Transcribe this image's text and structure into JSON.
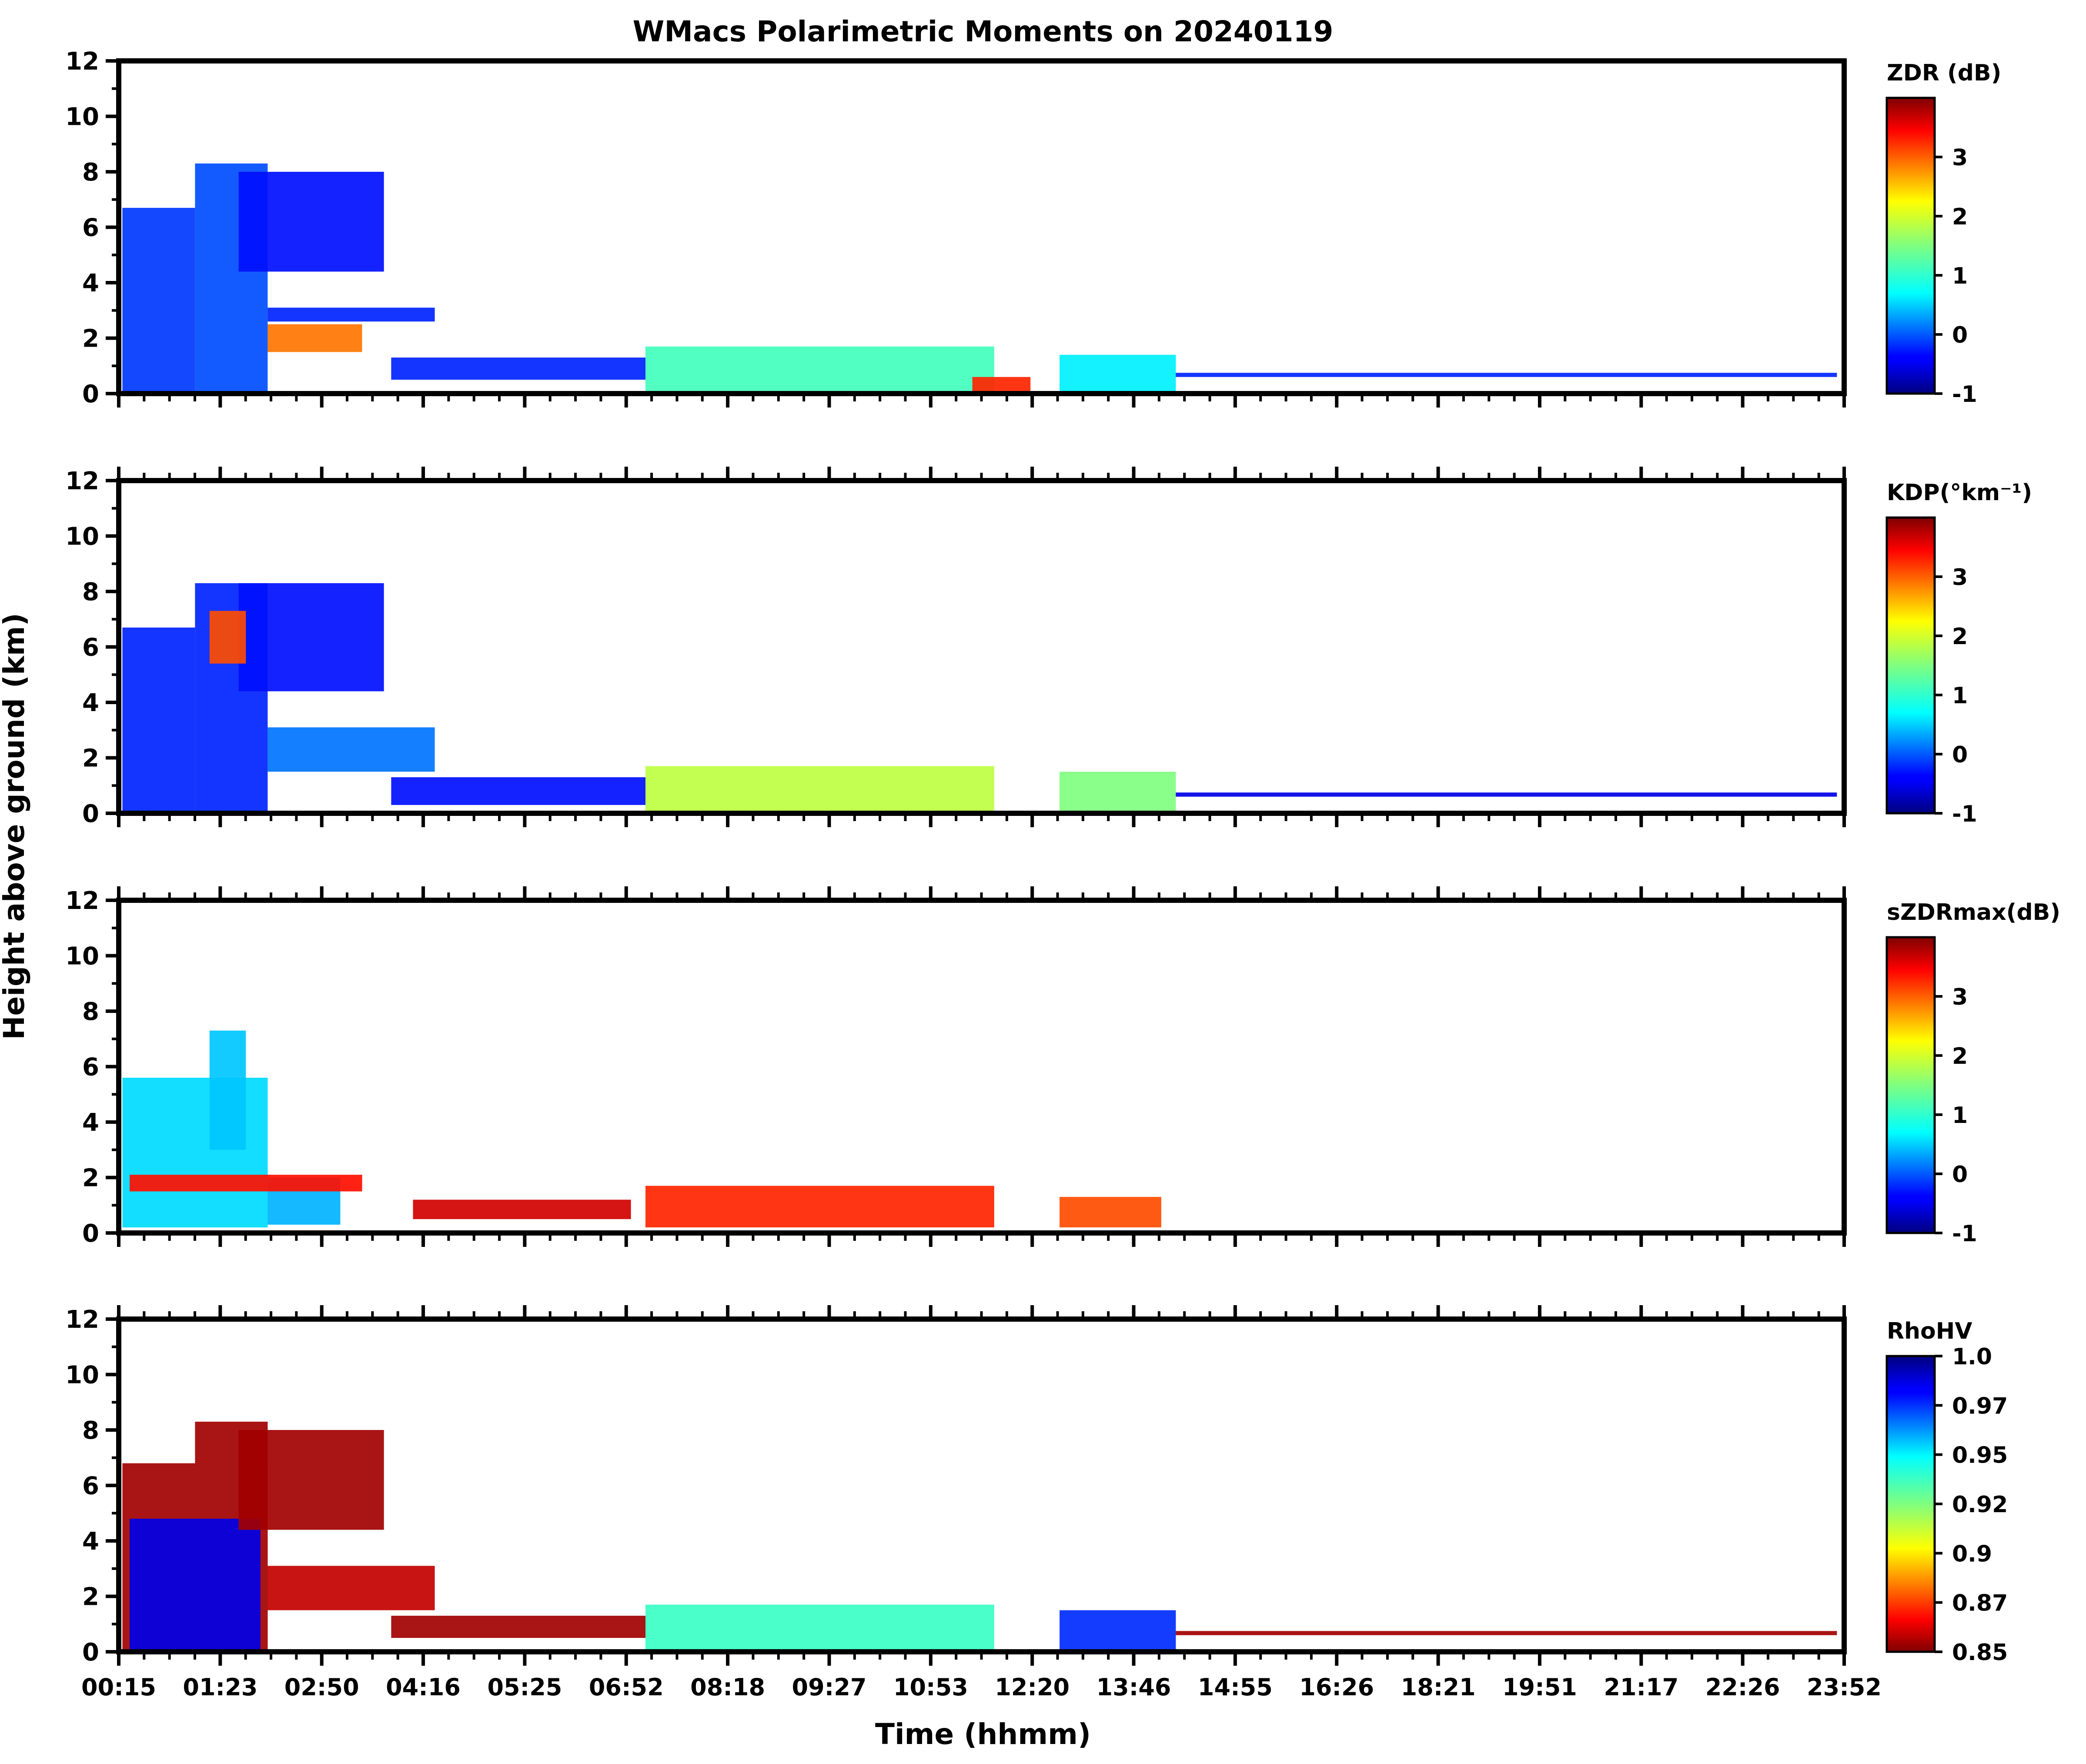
{
  "chart_data": {
    "type": "heatmap",
    "title": "WMacs Polarimetric Moments on 20240119",
    "xlabel": "Time (hhmm)",
    "ylabel": "Height above ground (km)",
    "x_tick_labels": [
      "00:15",
      "01:23",
      "02:50",
      "04:16",
      "05:25",
      "06:52",
      "08:18",
      "09:27",
      "10:53",
      "12:20",
      "13:46",
      "14:55",
      "16:26",
      "18:21",
      "19:51",
      "21:17",
      "22:26",
      "23:52"
    ],
    "x_range_hours": [
      0.25,
      24.0
    ],
    "ylim": [
      0,
      12
    ],
    "y_ticks": [
      0,
      2,
      4,
      6,
      8,
      10,
      12
    ],
    "panels": [
      {
        "name": "zdr",
        "colorbar_label": "ZDR (dB)",
        "colorbar_ticks": [
          "-1",
          "0",
          "1",
          "2",
          "3"
        ],
        "colorbar_tick_values": [
          -1,
          0,
          1,
          2,
          3
        ],
        "vmin": -1,
        "vmax": 4,
        "colormap": "jet",
        "echo_regions": [
          {
            "t0": 0.3,
            "t1": 1.3,
            "h0": 0.0,
            "h1": 6.7,
            "value": -0.1
          },
          {
            "t0": 1.3,
            "t1": 2.3,
            "h0": 0.0,
            "h1": 8.3,
            "value": 0.0
          },
          {
            "t0": 1.9,
            "t1": 3.9,
            "h0": 4.4,
            "h1": 8.0,
            "value": -0.3
          },
          {
            "t0": 2.3,
            "t1": 4.6,
            "h0": 2.6,
            "h1": 3.1,
            "value": -0.2
          },
          {
            "t0": 2.3,
            "t1": 3.6,
            "h0": 1.5,
            "h1": 2.5,
            "value": 2.8
          },
          {
            "t0": 4.0,
            "t1": 7.5,
            "h0": 0.5,
            "h1": 1.3,
            "value": -0.2
          },
          {
            "t0": 7.5,
            "t1": 12.3,
            "h0": 0.0,
            "h1": 1.7,
            "value": 1.2
          },
          {
            "t0": 12.0,
            "t1": 12.8,
            "h0": 0.0,
            "h1": 0.6,
            "value": 3.2
          },
          {
            "t0": 13.2,
            "t1": 14.8,
            "h0": 0.0,
            "h1": 1.4,
            "value": 0.8
          },
          {
            "t0": 14.8,
            "t1": 23.9,
            "h0": 0.6,
            "h1": 0.75,
            "value": -0.2
          }
        ]
      },
      {
        "name": "kdp",
        "colorbar_label": "KDP(°km⁻¹)",
        "colorbar_ticks": [
          "-1",
          "0",
          "1",
          "2",
          "3"
        ],
        "colorbar_tick_values": [
          -1,
          0,
          1,
          2,
          3
        ],
        "vmin": -1,
        "vmax": 4,
        "colormap": "jet",
        "echo_regions": [
          {
            "t0": 0.3,
            "t1": 1.3,
            "h0": 0.0,
            "h1": 6.7,
            "value": -0.2
          },
          {
            "t0": 1.3,
            "t1": 2.3,
            "h0": 0.0,
            "h1": 8.3,
            "value": -0.2
          },
          {
            "t0": 1.9,
            "t1": 3.9,
            "h0": 4.4,
            "h1": 8.3,
            "value": -0.3
          },
          {
            "t0": 2.3,
            "t1": 4.6,
            "h0": 1.5,
            "h1": 3.1,
            "value": 0.2
          },
          {
            "t0": 1.5,
            "t1": 2.0,
            "h0": 5.4,
            "h1": 7.3,
            "value": 3.0
          },
          {
            "t0": 4.0,
            "t1": 7.5,
            "h0": 0.3,
            "h1": 1.3,
            "value": -0.3
          },
          {
            "t0": 7.5,
            "t1": 12.3,
            "h0": 0.0,
            "h1": 1.7,
            "value": 1.8
          },
          {
            "t0": 13.2,
            "t1": 14.8,
            "h0": 0.0,
            "h1": 1.5,
            "value": 1.5
          },
          {
            "t0": 14.8,
            "t1": 23.9,
            "h0": 0.6,
            "h1": 0.75,
            "value": -0.5
          }
        ]
      },
      {
        "name": "szdrmax",
        "colorbar_label": "sZDRmax(dB)",
        "colorbar_ticks": [
          "-1",
          "0",
          "1",
          "2",
          "3"
        ],
        "colorbar_tick_values": [
          -1,
          0,
          1,
          2,
          3
        ],
        "vmin": -1,
        "vmax": 4,
        "colormap": "jet",
        "echo_regions": [
          {
            "t0": 0.3,
            "t1": 2.3,
            "h0": 0.2,
            "h1": 5.6,
            "value": 0.7
          },
          {
            "t0": 1.5,
            "t1": 2.0,
            "h0": 3.0,
            "h1": 7.3,
            "value": 0.6
          },
          {
            "t0": 2.3,
            "t1": 3.3,
            "h0": 0.3,
            "h1": 2.0,
            "value": 0.5
          },
          {
            "t0": 0.4,
            "t1": 3.6,
            "h0": 1.5,
            "h1": 2.1,
            "value": 3.3
          },
          {
            "t0": 4.3,
            "t1": 7.3,
            "h0": 0.5,
            "h1": 1.2,
            "value": 3.6
          },
          {
            "t0": 7.5,
            "t1": 12.3,
            "h0": 0.2,
            "h1": 1.7,
            "value": 3.2
          },
          {
            "t0": 13.2,
            "t1": 14.6,
            "h0": 0.2,
            "h1": 1.3,
            "value": 3.0
          }
        ]
      },
      {
        "name": "rhohv",
        "colorbar_label": "RhoHV",
        "colorbar_ticks": [
          "0.85",
          "0.87",
          "0.9",
          "0.92",
          "0.95",
          "0.97",
          "1.0"
        ],
        "colorbar_tick_values": [
          0.85,
          0.875,
          0.9,
          0.925,
          0.95,
          0.975,
          1.0
        ],
        "vmin": 0.85,
        "vmax": 1.0,
        "colormap": "jet_r",
        "echo_regions": [
          {
            "t0": 0.3,
            "t1": 2.3,
            "h0": 0.0,
            "h1": 6.8,
            "value": 0.855
          },
          {
            "t0": 1.3,
            "t1": 2.3,
            "h0": 6.8,
            "h1": 8.3,
            "value": 0.855
          },
          {
            "t0": 0.4,
            "t1": 2.2,
            "h0": 0.0,
            "h1": 4.8,
            "value": 0.985
          },
          {
            "t0": 1.9,
            "t1": 3.9,
            "h0": 4.4,
            "h1": 8.0,
            "value": 0.855
          },
          {
            "t0": 2.3,
            "t1": 4.6,
            "h0": 1.5,
            "h1": 3.1,
            "value": 0.86
          },
          {
            "t0": 4.0,
            "t1": 7.5,
            "h0": 0.5,
            "h1": 1.3,
            "value": 0.855
          },
          {
            "t0": 7.5,
            "t1": 12.3,
            "h0": 0.0,
            "h1": 1.7,
            "value": 0.935
          },
          {
            "t0": 13.2,
            "t1": 14.8,
            "h0": 0.0,
            "h1": 1.5,
            "value": 0.975
          },
          {
            "t0": 14.8,
            "t1": 23.9,
            "h0": 0.6,
            "h1": 0.75,
            "value": 0.855
          }
        ]
      }
    ]
  }
}
